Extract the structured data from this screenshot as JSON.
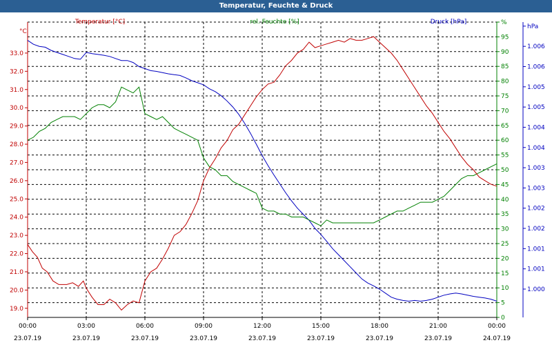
{
  "window": {
    "title": "Temperatur, Feuchte & Druck"
  },
  "chart_data": {
    "type": "line",
    "series": [
      {
        "name": "Temperatur [°C]",
        "unit": "°C",
        "color": "#c00000",
        "axis": "left",
        "ylim": [
          18.5,
          34.7
        ],
        "ticks": [
          "19.0",
          "20.0",
          "21.0",
          "22.0",
          "23.0",
          "24.0",
          "25.0",
          "26.0",
          "27.0",
          "28.0",
          "29.0",
          "30.0",
          "31.0",
          "32.0",
          "33.0"
        ],
        "tick_values": [
          19,
          20,
          21,
          22,
          23,
          24,
          25,
          26,
          27,
          28,
          29,
          30,
          31,
          32,
          33
        ],
        "points": [
          [
            0,
            22.5
          ],
          [
            0.25,
            22.1
          ],
          [
            0.5,
            21.8
          ],
          [
            0.75,
            21.2
          ],
          [
            1,
            21.0
          ],
          [
            1.3,
            20.5
          ],
          [
            1.6,
            20.3
          ],
          [
            2,
            20.3
          ],
          [
            2.3,
            20.4
          ],
          [
            2.6,
            20.2
          ],
          [
            2.85,
            20.5
          ],
          [
            3,
            20.1
          ],
          [
            3.3,
            19.6
          ],
          [
            3.6,
            19.2
          ],
          [
            3.9,
            19.2
          ],
          [
            4.2,
            19.5
          ],
          [
            4.5,
            19.3
          ],
          [
            4.8,
            18.9
          ],
          [
            5.1,
            19.2
          ],
          [
            5.4,
            19.4
          ],
          [
            5.7,
            19.3
          ],
          [
            6,
            20.5
          ],
          [
            6.3,
            21.0
          ],
          [
            6.6,
            21.2
          ],
          [
            6.9,
            21.7
          ],
          [
            7.2,
            22.3
          ],
          [
            7.5,
            23.0
          ],
          [
            7.8,
            23.2
          ],
          [
            8.1,
            23.6
          ],
          [
            8.4,
            24.2
          ],
          [
            8.7,
            24.9
          ],
          [
            9,
            26.0
          ],
          [
            9.3,
            26.7
          ],
          [
            9.6,
            27.2
          ],
          [
            9.9,
            27.8
          ],
          [
            10.2,
            28.2
          ],
          [
            10.5,
            28.8
          ],
          [
            10.8,
            29.1
          ],
          [
            11.1,
            29.6
          ],
          [
            11.4,
            30.1
          ],
          [
            11.7,
            30.6
          ],
          [
            12,
            31.0
          ],
          [
            12.3,
            31.3
          ],
          [
            12.6,
            31.4
          ],
          [
            12.9,
            31.8
          ],
          [
            13.2,
            32.3
          ],
          [
            13.5,
            32.6
          ],
          [
            13.8,
            33.0
          ],
          [
            14.1,
            33.2
          ],
          [
            14.4,
            33.6
          ],
          [
            14.7,
            33.3
          ],
          [
            15,
            33.4
          ],
          [
            15.3,
            33.5
          ],
          [
            15.6,
            33.6
          ],
          [
            15.9,
            33.7
          ],
          [
            16.2,
            33.6
          ],
          [
            16.5,
            33.8
          ],
          [
            16.8,
            33.7
          ],
          [
            17.1,
            33.7
          ],
          [
            17.4,
            33.8
          ],
          [
            17.7,
            33.9
          ],
          [
            18,
            33.6
          ],
          [
            18.3,
            33.3
          ],
          [
            18.6,
            33.0
          ],
          [
            18.9,
            32.6
          ],
          [
            19.2,
            32.1
          ],
          [
            19.5,
            31.6
          ],
          [
            19.8,
            31.1
          ],
          [
            20.1,
            30.6
          ],
          [
            20.4,
            30.1
          ],
          [
            20.7,
            29.7
          ],
          [
            21,
            29.2
          ],
          [
            21.3,
            28.7
          ],
          [
            21.6,
            28.3
          ],
          [
            21.9,
            27.8
          ],
          [
            22.2,
            27.3
          ],
          [
            22.5,
            26.9
          ],
          [
            22.8,
            26.6
          ],
          [
            23.1,
            26.2
          ],
          [
            23.4,
            26.0
          ],
          [
            23.7,
            25.8
          ],
          [
            24,
            25.7
          ]
        ]
      },
      {
        "name": "rel. Feuchte [%]",
        "unit": "%",
        "color": "#008000",
        "axis": "right",
        "ylim": [
          0,
          100
        ],
        "ticks": [
          "0",
          "5",
          "10",
          "15",
          "20",
          "25",
          "30",
          "35",
          "40",
          "45",
          "50",
          "55",
          "60",
          "65",
          "70",
          "75",
          "80",
          "85",
          "90",
          "95",
          "%"
        ],
        "tick_values": [
          0,
          5,
          10,
          15,
          20,
          25,
          30,
          35,
          40,
          45,
          50,
          55,
          60,
          65,
          70,
          75,
          80,
          85,
          90,
          95,
          100
        ],
        "points": [
          [
            0,
            60
          ],
          [
            0.3,
            61
          ],
          [
            0.6,
            63
          ],
          [
            0.9,
            64
          ],
          [
            1.2,
            66
          ],
          [
            1.5,
            67
          ],
          [
            1.8,
            68
          ],
          [
            2.1,
            68
          ],
          [
            2.4,
            68
          ],
          [
            2.7,
            67
          ],
          [
            3,
            69
          ],
          [
            3.3,
            71
          ],
          [
            3.6,
            72
          ],
          [
            3.9,
            72
          ],
          [
            4.2,
            71
          ],
          [
            4.5,
            73
          ],
          [
            4.8,
            78
          ],
          [
            5.1,
            77
          ],
          [
            5.4,
            76
          ],
          [
            5.7,
            78
          ],
          [
            6,
            69
          ],
          [
            6.3,
            68
          ],
          [
            6.6,
            67
          ],
          [
            6.9,
            68
          ],
          [
            7.2,
            66
          ],
          [
            7.5,
            64
          ],
          [
            7.8,
            63
          ],
          [
            8.1,
            62
          ],
          [
            8.4,
            61
          ],
          [
            8.7,
            60
          ],
          [
            9,
            54
          ],
          [
            9.3,
            51
          ],
          [
            9.6,
            50
          ],
          [
            9.9,
            48
          ],
          [
            10.2,
            48
          ],
          [
            10.5,
            46
          ],
          [
            10.8,
            45
          ],
          [
            11.1,
            44
          ],
          [
            11.4,
            43
          ],
          [
            11.7,
            42
          ],
          [
            12,
            37
          ],
          [
            12.3,
            36
          ],
          [
            12.6,
            36
          ],
          [
            12.9,
            35
          ],
          [
            13.2,
            35
          ],
          [
            13.5,
            34
          ],
          [
            13.8,
            34
          ],
          [
            14.1,
            34
          ],
          [
            14.4,
            33
          ],
          [
            14.7,
            32
          ],
          [
            15,
            31
          ],
          [
            15.3,
            33
          ],
          [
            15.6,
            32
          ],
          [
            15.9,
            32
          ],
          [
            16.2,
            32
          ],
          [
            16.5,
            32
          ],
          [
            16.8,
            32
          ],
          [
            17.1,
            32
          ],
          [
            17.4,
            32
          ],
          [
            17.7,
            32
          ],
          [
            18,
            33
          ],
          [
            18.3,
            34
          ],
          [
            18.6,
            35
          ],
          [
            18.9,
            36
          ],
          [
            19.2,
            36
          ],
          [
            19.5,
            37
          ],
          [
            19.8,
            38
          ],
          [
            20.1,
            39
          ],
          [
            20.4,
            39
          ],
          [
            20.7,
            39
          ],
          [
            21,
            40
          ],
          [
            21.3,
            41
          ],
          [
            21.6,
            43
          ],
          [
            21.9,
            45
          ],
          [
            22.2,
            47
          ],
          [
            22.5,
            48
          ],
          [
            22.8,
            48
          ],
          [
            23.1,
            49
          ],
          [
            23.4,
            50
          ],
          [
            23.7,
            51
          ],
          [
            24,
            52
          ]
        ]
      },
      {
        "name": "Druck [hPa]",
        "unit": "hPa",
        "color": "#0000c0",
        "axis": "far-right",
        "ylim": [
          0.9993,
          1.0066
        ],
        "ticks": [
          "1.000",
          "1.001",
          "1.001",
          "1.002",
          "1.002",
          "1.003",
          "1.003",
          "1.004",
          "1.004",
          "1.005",
          "1.005",
          "1.006",
          "1.006",
          "hPa"
        ],
        "tick_values": [
          1.0,
          1.0005,
          1.001,
          1.0015,
          1.002,
          1.0025,
          1.003,
          1.0035,
          1.004,
          1.0045,
          1.005,
          1.0055,
          1.006,
          1.0065
        ],
        "points": [
          [
            0,
            1.00615
          ],
          [
            0.3,
            1.00605
          ],
          [
            0.6,
            1.006
          ],
          [
            0.9,
            1.00598
          ],
          [
            1.2,
            1.0059
          ],
          [
            1.5,
            1.00585
          ],
          [
            1.8,
            1.0058
          ],
          [
            2.1,
            1.00575
          ],
          [
            2.4,
            1.0057
          ],
          [
            2.7,
            1.00568
          ],
          [
            3,
            1.00585
          ],
          [
            3.3,
            1.00582
          ],
          [
            3.6,
            1.0058
          ],
          [
            3.9,
            1.00578
          ],
          [
            4.2,
            1.00575
          ],
          [
            4.5,
            1.0057
          ],
          [
            4.8,
            1.00565
          ],
          [
            5.1,
            1.00565
          ],
          [
            5.4,
            1.0056
          ],
          [
            5.7,
            1.0055
          ],
          [
            6,
            1.00545
          ],
          [
            6.3,
            1.0054
          ],
          [
            6.6,
            1.00538
          ],
          [
            6.9,
            1.00535
          ],
          [
            7.2,
            1.00532
          ],
          [
            7.5,
            1.0053
          ],
          [
            7.8,
            1.00528
          ],
          [
            8.1,
            1.00522
          ],
          [
            8.4,
            1.00515
          ],
          [
            8.7,
            1.0051
          ],
          [
            9,
            1.00505
          ],
          [
            9.3,
            1.00495
          ],
          [
            9.6,
            1.00488
          ],
          [
            9.9,
            1.00478
          ],
          [
            10.2,
            1.00465
          ],
          [
            10.5,
            1.0045
          ],
          [
            10.8,
            1.00432
          ],
          [
            11.1,
            1.0041
          ],
          [
            11.4,
            1.00385
          ],
          [
            11.7,
            1.00358
          ],
          [
            12,
            1.0033
          ],
          [
            12.3,
            1.00305
          ],
          [
            12.6,
            1.00282
          ],
          [
            12.9,
            1.0026
          ],
          [
            13.2,
            1.00238
          ],
          [
            13.5,
            1.00218
          ],
          [
            13.8,
            1.002
          ],
          [
            14.1,
            1.00185
          ],
          [
            14.4,
            1.0017
          ],
          [
            14.7,
            1.0015
          ],
          [
            15,
            1.00135
          ],
          [
            15.3,
            1.00118
          ],
          [
            15.6,
            1.001
          ],
          [
            15.9,
            1.00085
          ],
          [
            16.2,
            1.0007
          ],
          [
            16.5,
            1.00055
          ],
          [
            16.8,
            1.0004
          ],
          [
            17.1,
            1.00025
          ],
          [
            17.4,
            1.00015
          ],
          [
            17.7,
            1.00008
          ],
          [
            18,
            1.0
          ],
          [
            18.3,
            0.9999
          ],
          [
            18.6,
            0.9998
          ],
          [
            18.9,
            0.99975
          ],
          [
            19.2,
            0.99972
          ],
          [
            19.5,
            0.9997
          ],
          [
            19.8,
            0.99972
          ],
          [
            20.1,
            0.9997
          ],
          [
            20.4,
            0.99972
          ],
          [
            20.7,
            0.99975
          ],
          [
            21,
            0.9998
          ],
          [
            21.3,
            0.99985
          ],
          [
            21.6,
            0.99988
          ],
          [
            21.9,
            0.9999
          ],
          [
            22.2,
            0.99988
          ],
          [
            22.5,
            0.99985
          ],
          [
            22.8,
            0.99982
          ],
          [
            23.1,
            0.9998
          ],
          [
            23.4,
            0.99978
          ],
          [
            23.7,
            0.99975
          ],
          [
            24,
            0.9997
          ]
        ]
      }
    ],
    "x_ticks": [
      {
        "time": "00:00",
        "date": "23.07.19"
      },
      {
        "time": "03:00",
        "date": "23.07.19"
      },
      {
        "time": "06:00",
        "date": "23.07.19"
      },
      {
        "time": "09:00",
        "date": "23.07.19"
      },
      {
        "time": "12:00",
        "date": "23.07.19"
      },
      {
        "time": "15:00",
        "date": "23.07.19"
      },
      {
        "time": "18:00",
        "date": "23.07.19"
      },
      {
        "time": "21:00",
        "date": "23.07.19"
      },
      {
        "time": "00:00",
        "date": "24.07.19"
      }
    ],
    "left_unit_label": "°C",
    "grid": true
  }
}
